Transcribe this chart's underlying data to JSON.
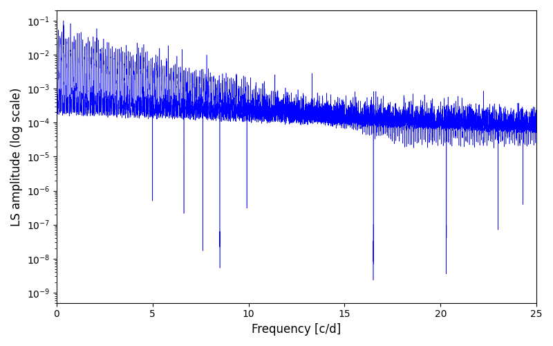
{
  "xlabel": "Frequency [c/d]",
  "ylabel": "LS amplitude (log scale)",
  "line_color": "#0000ff",
  "xlim": [
    0,
    25
  ],
  "ylim": [
    5e-10,
    0.2
  ],
  "figsize": [
    8.0,
    5.0
  ],
  "dpi": 100,
  "seed": 42,
  "n_freq": 12000,
  "freq_max": 25.0,
  "line_width": 0.4,
  "background_color": "#ffffff",
  "peak_env_low": 0.03,
  "peak_env_decay": 0.38,
  "floor_env_low": 0.0003,
  "floor_env_decay": 0.05,
  "floor_high": 3e-05,
  "spike_period_low": 0.18,
  "spike_period_high": 0.08,
  "deep_dip_min": 1e-09,
  "deep_dip_max": 1e-07,
  "n_deep_dips": 6
}
